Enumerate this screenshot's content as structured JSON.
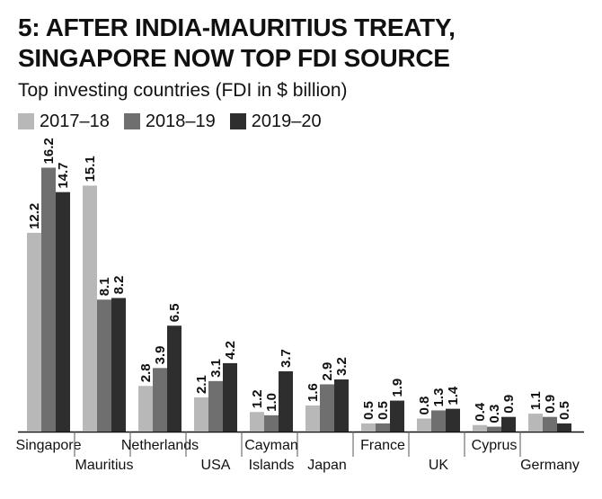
{
  "chart_data": {
    "type": "bar",
    "title": "5: AFTER INDIA-MAURITIUS TREATY, SINGAPORE NOW TOP FDI SOURCE",
    "subtitle": "Top investing countries (FDI in $ billion)",
    "categories": [
      [
        "Singapore"
      ],
      [
        "Mauritius"
      ],
      [
        "Netherlands"
      ],
      [
        "USA"
      ],
      [
        "Cayman",
        "Islands"
      ],
      [
        "Japan"
      ],
      [
        "France"
      ],
      [
        "UK"
      ],
      [
        "Cyprus"
      ],
      [
        "Germany"
      ]
    ],
    "series": [
      {
        "name": "2017–18",
        "color": "#b8b8b8",
        "values": [
          12.2,
          15.1,
          2.8,
          2.1,
          1.2,
          1.6,
          0.5,
          0.8,
          0.4,
          1.1
        ]
      },
      {
        "name": "2018–19",
        "color": "#6f6f6f",
        "values": [
          16.2,
          8.1,
          3.9,
          3.1,
          1.0,
          2.9,
          0.5,
          1.3,
          0.3,
          0.9
        ]
      },
      {
        "name": "2019–20",
        "color": "#2e2e2e",
        "values": [
          14.7,
          8.2,
          6.5,
          4.2,
          3.7,
          3.2,
          1.9,
          1.4,
          0.9,
          0.5
        ]
      }
    ],
    "value_labels": [
      [
        "12.2",
        "15.1",
        "2.8",
        "2.1",
        "1.2",
        "1.6",
        "0.5",
        "0.8",
        "0.4",
        "1.1"
      ],
      [
        "16.2",
        "8.1",
        "3.9",
        "3.1",
        "1.0",
        "2.9",
        "0.5",
        "1.3",
        "0.3",
        "0.9"
      ],
      [
        "14.7",
        "8.2",
        "6.5",
        "4.2",
        "3.7",
        "3.2",
        "1.9",
        "1.4",
        "0.9",
        "0.5"
      ]
    ],
    "ylim": [
      0,
      17
    ],
    "xlabel": "",
    "ylabel": "",
    "grid": false,
    "legend_position": "top-left"
  }
}
